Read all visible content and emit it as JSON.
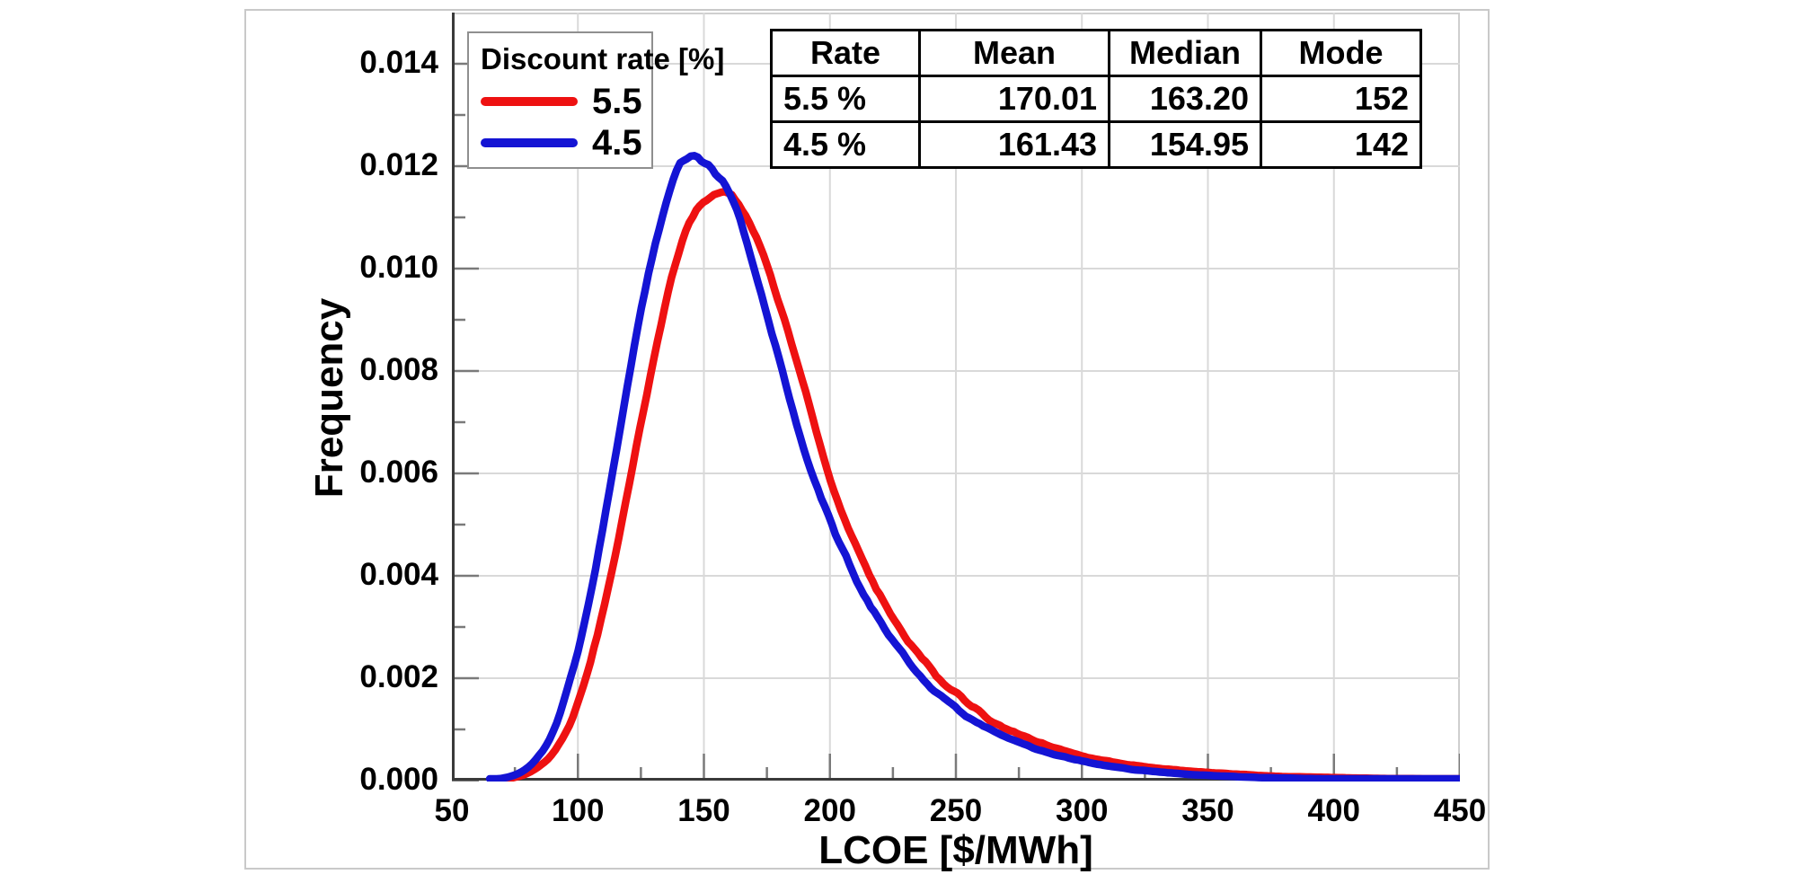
{
  "chart_data": {
    "type": "line",
    "title": "",
    "xlabel": "LCOE [$/MWh]",
    "ylabel": "Frequency",
    "xlim": [
      50,
      450
    ],
    "ylim": [
      0,
      0.015
    ],
    "grid": true,
    "x_tick_labels": [
      "50",
      "100",
      "150",
      "200",
      "250",
      "300",
      "350",
      "400",
      "450"
    ],
    "x_tick_values": [
      50,
      100,
      150,
      200,
      250,
      300,
      350,
      400,
      450
    ],
    "x_minor_step": 25,
    "y_tick_labels": [
      "0.000",
      "0.002",
      "0.004",
      "0.006",
      "0.008",
      "0.010",
      "0.012",
      "0.014"
    ],
    "y_tick_values": [
      0,
      0.002,
      0.004,
      0.006,
      0.008,
      0.01,
      0.012,
      0.014
    ],
    "y_minor_step": 0.001,
    "legend_position": "upper-left-inside",
    "series": [
      {
        "name": "5.5",
        "color": "#ee1111",
        "points": [
          [
            70,
            2e-05
          ],
          [
            75,
            6e-05
          ],
          [
            80,
            0.00013
          ],
          [
            85,
            0.00028
          ],
          [
            90,
            0.0005
          ],
          [
            95,
            0.0009
          ],
          [
            100,
            0.0015
          ],
          [
            105,
            0.0023
          ],
          [
            110,
            0.0033
          ],
          [
            115,
            0.0044
          ],
          [
            120,
            0.0057
          ],
          [
            125,
            0.007
          ],
          [
            130,
            0.0082
          ],
          [
            135,
            0.0094
          ],
          [
            140,
            0.0104
          ],
          [
            145,
            0.011
          ],
          [
            148,
            0.0112
          ],
          [
            150,
            0.0114
          ],
          [
            153,
            0.0113
          ],
          [
            156,
            0.0116
          ],
          [
            160,
            0.0115
          ],
          [
            165,
            0.0112
          ],
          [
            170,
            0.0107
          ],
          [
            175,
            0.0101
          ],
          [
            180,
            0.0093
          ],
          [
            185,
            0.0085
          ],
          [
            190,
            0.0077
          ],
          [
            195,
            0.0067
          ],
          [
            200,
            0.0059
          ],
          [
            205,
            0.0052
          ],
          [
            210,
            0.0046
          ],
          [
            215,
            0.0041
          ],
          [
            220,
            0.0036
          ],
          [
            225,
            0.0032
          ],
          [
            230,
            0.0028
          ],
          [
            235,
            0.0025
          ],
          [
            240,
            0.0022
          ],
          [
            245,
            0.0019
          ],
          [
            250,
            0.0017
          ],
          [
            255,
            0.0015
          ],
          [
            260,
            0.0013
          ],
          [
            265,
            0.0011
          ],
          [
            270,
            0.001
          ],
          [
            275,
            0.0009
          ],
          [
            280,
            0.0008
          ],
          [
            290,
            0.00062
          ],
          [
            300,
            0.00048
          ],
          [
            310,
            0.00038
          ],
          [
            320,
            0.0003
          ],
          [
            330,
            0.00024
          ],
          [
            340,
            0.0002
          ],
          [
            350,
            0.00016
          ],
          [
            360,
            0.00013
          ],
          [
            370,
            0.0001
          ],
          [
            380,
            8e-05
          ],
          [
            390,
            7e-05
          ],
          [
            400,
            6e-05
          ],
          [
            410,
            5e-05
          ],
          [
            420,
            4e-05
          ],
          [
            430,
            4e-05
          ],
          [
            440,
            3e-05
          ],
          [
            450,
            3e-05
          ]
        ]
      },
      {
        "name": "4.5",
        "color": "#1414d4",
        "points": [
          [
            65,
            1e-05
          ],
          [
            70,
            4e-05
          ],
          [
            75,
            0.0001
          ],
          [
            80,
            0.00023
          ],
          [
            85,
            0.0005
          ],
          [
            90,
            0.0009
          ],
          [
            95,
            0.0016
          ],
          [
            100,
            0.0025
          ],
          [
            105,
            0.0036
          ],
          [
            110,
            0.0049
          ],
          [
            115,
            0.0064
          ],
          [
            120,
            0.0078
          ],
          [
            125,
            0.0092
          ],
          [
            130,
            0.0104
          ],
          [
            135,
            0.0113
          ],
          [
            138,
            0.0118
          ],
          [
            141,
            0.0121
          ],
          [
            143,
            0.01235
          ],
          [
            145,
            0.0121
          ],
          [
            147,
            0.0122
          ],
          [
            150,
            0.0123
          ],
          [
            152,
            0.0118
          ],
          [
            155,
            0.012
          ],
          [
            158,
            0.0116
          ],
          [
            162,
            0.0114
          ],
          [
            165,
            0.0109
          ],
          [
            170,
            0.01
          ],
          [
            175,
            0.0091
          ],
          [
            180,
            0.0082
          ],
          [
            185,
            0.0073
          ],
          [
            190,
            0.0064
          ],
          [
            195,
            0.0057
          ],
          [
            200,
            0.0051
          ],
          [
            205,
            0.0045
          ],
          [
            210,
            0.004
          ],
          [
            215,
            0.0035
          ],
          [
            220,
            0.0031
          ],
          [
            225,
            0.0027
          ],
          [
            230,
            0.0024
          ],
          [
            235,
            0.0021
          ],
          [
            240,
            0.0018
          ],
          [
            245,
            0.0016
          ],
          [
            250,
            0.0014
          ],
          [
            255,
            0.0012
          ],
          [
            260,
            0.0011
          ],
          [
            265,
            0.00095
          ],
          [
            270,
            0.00085
          ],
          [
            275,
            0.00075
          ],
          [
            280,
            0.00065
          ],
          [
            290,
            0.0005
          ],
          [
            300,
            0.00038
          ],
          [
            310,
            0.00029
          ],
          [
            320,
            0.00022
          ],
          [
            330,
            0.00017
          ],
          [
            340,
            0.00013
          ],
          [
            350,
            0.0001
          ],
          [
            360,
            8e-05
          ],
          [
            370,
            6e-05
          ],
          [
            380,
            5e-05
          ],
          [
            390,
            4e-05
          ],
          [
            400,
            3e-05
          ],
          [
            410,
            3e-05
          ],
          [
            420,
            2e-05
          ],
          [
            430,
            2e-05
          ],
          [
            440,
            2e-05
          ],
          [
            450,
            2e-05
          ]
        ]
      }
    ]
  },
  "legend": {
    "title": "Discount rate [%]",
    "entries": [
      {
        "label": "5.5",
        "color": "#ee1111"
      },
      {
        "label": "4.5",
        "color": "#1414d4"
      }
    ]
  },
  "table": {
    "headers": [
      "Rate",
      "Mean",
      "Median",
      "Mode"
    ],
    "rows": [
      [
        "5.5 %",
        "170.01",
        "163.20",
        "152"
      ],
      [
        "4.5 %",
        "161.43",
        "154.95",
        "142"
      ]
    ]
  },
  "axes": {
    "x_title": "LCOE [$/MWh]",
    "y_title": "Frequency"
  },
  "colors": {
    "grid": "#d9d9d9",
    "spine_dark": "#3a3a3a",
    "spine_light": "#cfcfcf",
    "tick": "#7a7a7a",
    "figure_border": "#c9c9c9"
  }
}
